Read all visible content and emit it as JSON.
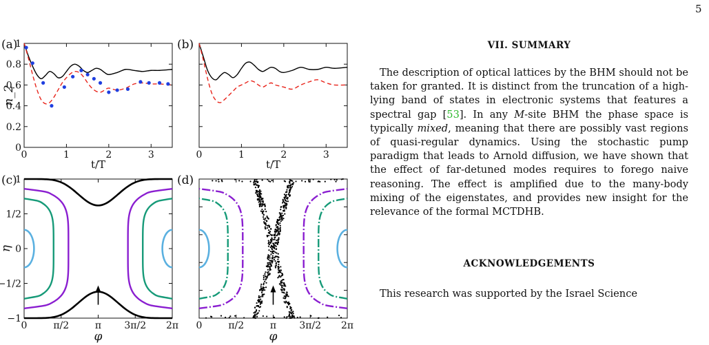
{
  "page_number": "5",
  "figure": {
    "panel_labels": {
      "a": "(a)",
      "b": "(b)",
      "c": "(c)",
      "d": "(d)"
    },
    "colors": {
      "black": "#000000",
      "red": "#e8231a",
      "blue": "#1f3fe0",
      "purple": "#8a1ed0",
      "green": "#169a78",
      "lightblue": "#5ab0e0"
    }
  },
  "chart_data": [
    {
      "panel": "(a)",
      "type": "line",
      "ylabel": "n_2",
      "xlabel": "t/T",
      "xlim": [
        0,
        3.5
      ],
      "ylim": [
        0,
        1
      ],
      "xticks": [
        "0",
        "1",
        "2",
        "3"
      ],
      "yticks": [
        "0",
        "0.2",
        "0.4",
        "0.6",
        "0.8",
        "1"
      ],
      "series": [
        {
          "color": "black",
          "style": "solid",
          "x": [
            0,
            0.1,
            0.2,
            0.3,
            0.4,
            0.5,
            0.6,
            0.7,
            0.8,
            0.9,
            1.0,
            1.1,
            1.2,
            1.3,
            1.4,
            1.5,
            1.6,
            1.7,
            1.8,
            1.9,
            2.0,
            2.2,
            2.4,
            2.6,
            2.8,
            3.0,
            3.2,
            3.5
          ],
          "y": [
            1.0,
            0.88,
            0.78,
            0.7,
            0.66,
            0.69,
            0.73,
            0.71,
            0.67,
            0.68,
            0.73,
            0.78,
            0.8,
            0.78,
            0.74,
            0.72,
            0.74,
            0.76,
            0.75,
            0.72,
            0.7,
            0.72,
            0.75,
            0.74,
            0.73,
            0.74,
            0.74,
            0.75
          ]
        },
        {
          "color": "red",
          "style": "dashed",
          "x": [
            0,
            0.1,
            0.2,
            0.3,
            0.4,
            0.5,
            0.6,
            0.7,
            0.8,
            0.9,
            1.0,
            1.1,
            1.2,
            1.3,
            1.4,
            1.5,
            1.6,
            1.7,
            1.8,
            1.9,
            2.0,
            2.2,
            2.4,
            2.6,
            2.8,
            3.0,
            3.2,
            3.5
          ],
          "y": [
            1.0,
            0.86,
            0.7,
            0.56,
            0.46,
            0.42,
            0.43,
            0.48,
            0.55,
            0.62,
            0.67,
            0.71,
            0.73,
            0.72,
            0.68,
            0.62,
            0.57,
            0.54,
            0.53,
            0.55,
            0.57,
            0.55,
            0.57,
            0.61,
            0.62,
            0.61,
            0.61,
            0.6
          ]
        },
        {
          "color": "blue",
          "style": "markers",
          "x": [
            0.05,
            0.2,
            0.45,
            0.65,
            0.95,
            1.15,
            1.35,
            1.5,
            1.65,
            1.8,
            2.0,
            2.2,
            2.45,
            2.75,
            2.95,
            3.2,
            3.4
          ],
          "y": [
            0.96,
            0.81,
            0.62,
            0.4,
            0.58,
            0.68,
            0.74,
            0.7,
            0.66,
            0.62,
            0.53,
            0.55,
            0.56,
            0.63,
            0.62,
            0.62,
            0.61
          ]
        }
      ]
    },
    {
      "panel": "(b)",
      "type": "line",
      "xlabel": "t/T",
      "xlim": [
        0,
        3.5
      ],
      "ylim": [
        0,
        1
      ],
      "xticks": [
        "0",
        "1",
        "2",
        "3"
      ],
      "series": [
        {
          "color": "black",
          "style": "solid",
          "x": [
            0,
            0.1,
            0.2,
            0.3,
            0.4,
            0.5,
            0.6,
            0.7,
            0.8,
            0.9,
            1.0,
            1.1,
            1.2,
            1.3,
            1.4,
            1.5,
            1.6,
            1.7,
            1.8,
            1.9,
            2.0,
            2.2,
            2.4,
            2.6,
            2.8,
            3.0,
            3.2,
            3.5
          ],
          "y": [
            1.0,
            0.87,
            0.74,
            0.67,
            0.65,
            0.69,
            0.72,
            0.7,
            0.67,
            0.7,
            0.76,
            0.81,
            0.82,
            0.79,
            0.75,
            0.73,
            0.75,
            0.77,
            0.76,
            0.73,
            0.72,
            0.74,
            0.77,
            0.75,
            0.75,
            0.77,
            0.76,
            0.77
          ]
        },
        {
          "color": "red",
          "style": "dashed",
          "x": [
            0,
            0.1,
            0.2,
            0.3,
            0.4,
            0.5,
            0.6,
            0.7,
            0.8,
            0.9,
            1.0,
            1.1,
            1.2,
            1.3,
            1.4,
            1.5,
            1.6,
            1.7,
            1.8,
            1.9,
            2.0,
            2.2,
            2.4,
            2.6,
            2.8,
            3.0,
            3.2,
            3.5
          ],
          "y": [
            1.0,
            0.84,
            0.66,
            0.52,
            0.45,
            0.43,
            0.46,
            0.5,
            0.54,
            0.58,
            0.6,
            0.62,
            0.64,
            0.63,
            0.6,
            0.58,
            0.6,
            0.62,
            0.6,
            0.59,
            0.58,
            0.56,
            0.6,
            0.63,
            0.65,
            0.62,
            0.6,
            0.6
          ]
        }
      ]
    },
    {
      "panel": "(c)",
      "type": "line",
      "ylabel": "η",
      "xlabel": "φ",
      "xlim": [
        0,
        6.2832
      ],
      "ylim": [
        -1,
        1
      ],
      "xticks": [
        "0",
        "π/2",
        "π",
        "3π/2",
        "2π"
      ],
      "yticks": [
        "−1",
        "−1/2",
        "0",
        "1/2",
        "1"
      ],
      "annotation": "↑",
      "contours": [
        {
          "color": "black",
          "kind": "separatrix",
          "neck": 0.62
        },
        {
          "color": "purple",
          "kind": "closed",
          "reach": 1.88
        },
        {
          "color": "green",
          "kind": "closed",
          "reach": 1.25
        },
        {
          "color": "lightblue",
          "kind": "closed",
          "reach": 0.42
        }
      ]
    },
    {
      "panel": "(d)",
      "type": "scatter",
      "xlabel": "φ",
      "xlim": [
        0,
        6.2832
      ],
      "ylim": [
        -1,
        1
      ],
      "xticks": [
        "0",
        "π/2",
        "π",
        "3π/2",
        "2π"
      ],
      "annotation": "↑",
      "contours": [
        {
          "color": "black",
          "kind": "chaotic-band"
        },
        {
          "color": "purple",
          "kind": "closed",
          "reach": 1.85
        },
        {
          "color": "green",
          "kind": "closed",
          "reach": 1.22
        },
        {
          "color": "lightblue",
          "kind": "closed",
          "reach": 0.42
        }
      ]
    }
  ],
  "text": {
    "section_title": "VII.   SUMMARY",
    "summary": [
      {
        "t": "The description of optical lattices by the BHM should not be taken for granted. It is distinct from the truncation of a high-lying band of states in electronic systems that features a spectral gap ["
      },
      {
        "t": "53",
        "cite": true
      },
      {
        "t": "]. In any "
      },
      {
        "t": "M",
        "em": true
      },
      {
        "t": "-site BHM the phase space is typically "
      },
      {
        "t": "mixed",
        "em": true
      },
      {
        "t": ", meaning that there are possibly vast regions of quasi-regular dynamics. Using the stochastic pump paradigm that leads to Arnold diffusion, we have shown that the effect of far-detuned modes requires to forego naive reasoning. The effect is amplified due to the many-body mixing of the eigenstates, and provides new insight for the relevance of the formal MCTDHB."
      }
    ],
    "ack_title": "ACKNOWLEDGEMENTS",
    "ack": "This research was supported by the Israel Science"
  }
}
